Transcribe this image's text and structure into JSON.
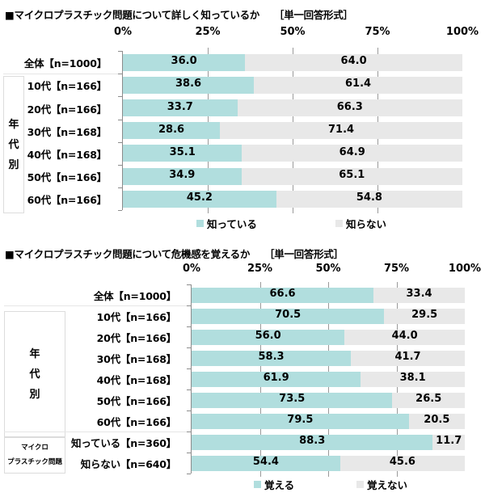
{
  "colors": {
    "positive": "#b1dede",
    "negative": "#e8e8e8"
  },
  "chart_data": [
    {
      "type": "bar",
      "orientation": "horizontal",
      "stacked": true,
      "title": "■マイクロプラスチック問題について詳しく知っているか",
      "format_note": "［単一回答形式］",
      "xlim": [
        0,
        100
      ],
      "x_ticks": [
        "0%",
        "25%",
        "50%",
        "75%",
        "100%"
      ],
      "group_label": "年代別",
      "categories": [
        "全体【n=1000】",
        "10代【n=166】",
        "20代【n=166】",
        "30代【n=168】",
        "40代【n=168】",
        "50代【n=166】",
        "60代【n=166】"
      ],
      "series": [
        {
          "name": "知っている",
          "color": "#b1dede",
          "values": [
            36.0,
            38.6,
            33.7,
            28.6,
            35.1,
            34.9,
            45.2
          ]
        },
        {
          "name": "知らない",
          "color": "#e8e8e8",
          "values": [
            64.0,
            61.4,
            66.3,
            71.4,
            64.9,
            65.1,
            54.8
          ]
        }
      ],
      "legend": "bottom"
    },
    {
      "type": "bar",
      "orientation": "horizontal",
      "stacked": true,
      "title": "■マイクロプラスチック問題について危機感を覚えるか",
      "format_note": "［単一回答形式］",
      "xlim": [
        0,
        100
      ],
      "x_ticks": [
        "0%",
        "25%",
        "50%",
        "75%",
        "100%"
      ],
      "group_label": "年代別",
      "group_label_2": [
        "マイクロ",
        "プラスチック問題"
      ],
      "categories": [
        "全体【n=1000】",
        "10代【n=166】",
        "20代【n=166】",
        "30代【n=168】",
        "40代【n=168】",
        "50代【n=166】",
        "60代【n=166】",
        "知っている【n=360】",
        "知らない【n=640】"
      ],
      "series": [
        {
          "name": "覚える",
          "color": "#b1dede",
          "values": [
            66.6,
            70.5,
            56.0,
            58.3,
            61.9,
            73.5,
            79.5,
            88.3,
            54.4
          ]
        },
        {
          "name": "覚えない",
          "color": "#e8e8e8",
          "values": [
            33.4,
            29.5,
            44.0,
            41.7,
            38.1,
            26.5,
            20.5,
            11.7,
            45.6
          ]
        }
      ],
      "legend": "bottom"
    }
  ]
}
